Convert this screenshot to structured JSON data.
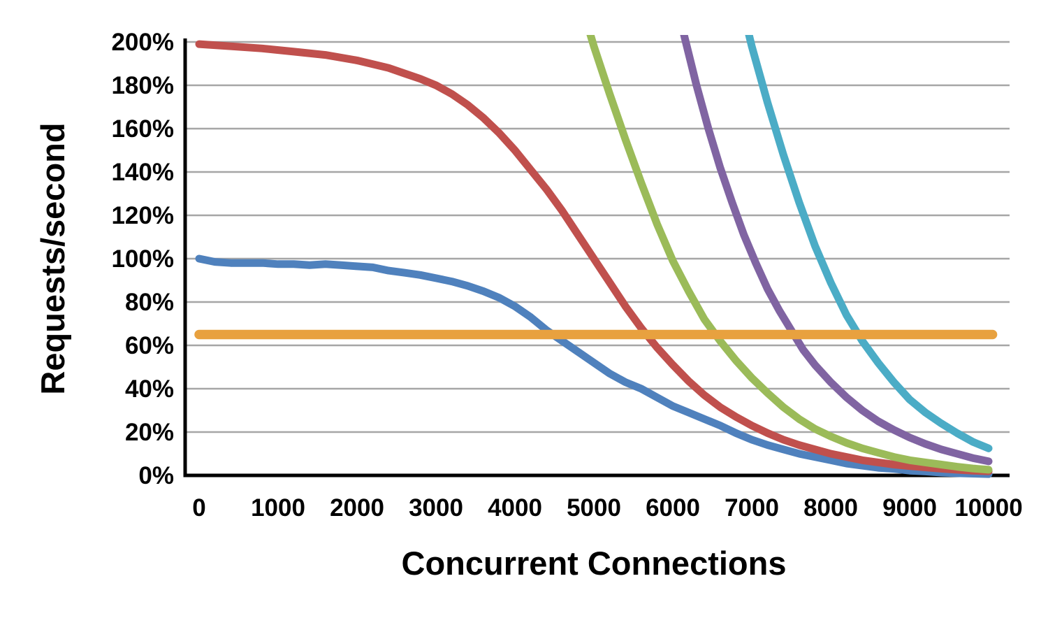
{
  "chart_data": {
    "type": "line",
    "title": "",
    "xlabel": "Concurrent Connections",
    "ylabel": "Requests/second",
    "xlim": [
      0,
      10000
    ],
    "ylim": [
      0,
      200
    ],
    "grid": "horizontal-only",
    "legend": "none",
    "axis_color": "#000000",
    "gridline_color": "#A6A6A6",
    "x_ticks": {
      "values": [
        0,
        1000,
        2000,
        3000,
        4000,
        5000,
        6000,
        7000,
        8000,
        9000,
        10000
      ],
      "labels": [
        "0",
        "1000",
        "2000",
        "3000",
        "4000",
        "5000",
        "6000",
        "7000",
        "8000",
        "9000",
        "10000"
      ]
    },
    "y_ticks": {
      "values": [
        0,
        20,
        40,
        60,
        80,
        100,
        120,
        140,
        160,
        180,
        200
      ],
      "labels": [
        "0%",
        "20%",
        "40%",
        "60%",
        "80%",
        "100%",
        "120%",
        "140%",
        "160%",
        "180%",
        "200%"
      ]
    },
    "series": [
      {
        "name": "blue-100pct-curve",
        "color": "#4F81BD",
        "width": 11,
        "points": [
          [
            0,
            100
          ],
          [
            200,
            98.5
          ],
          [
            400,
            98
          ],
          [
            600,
            98
          ],
          [
            800,
            98
          ],
          [
            1000,
            97.5
          ],
          [
            1200,
            97.5
          ],
          [
            1400,
            97
          ],
          [
            1600,
            97.5
          ],
          [
            1800,
            97
          ],
          [
            2000,
            96.5
          ],
          [
            2200,
            96
          ],
          [
            2400,
            94.5
          ],
          [
            2600,
            93.5
          ],
          [
            2800,
            92.5
          ],
          [
            3000,
            91
          ],
          [
            3200,
            89.5
          ],
          [
            3400,
            87.5
          ],
          [
            3600,
            85
          ],
          [
            3800,
            82
          ],
          [
            4000,
            78
          ],
          [
            4200,
            73
          ],
          [
            4400,
            67
          ],
          [
            4600,
            62
          ],
          [
            4800,
            57
          ],
          [
            5000,
            52
          ],
          [
            5200,
            47
          ],
          [
            5400,
            43
          ],
          [
            5600,
            40
          ],
          [
            5800,
            36
          ],
          [
            6000,
            32
          ],
          [
            6200,
            29
          ],
          [
            6400,
            26
          ],
          [
            6600,
            23
          ],
          [
            6800,
            19.5
          ],
          [
            7000,
            16.5
          ],
          [
            7200,
            14
          ],
          [
            7400,
            12
          ],
          [
            7600,
            10
          ],
          [
            7800,
            8.5
          ],
          [
            8000,
            7
          ],
          [
            8200,
            5.5
          ],
          [
            8400,
            4.5
          ],
          [
            8600,
            3.5
          ],
          [
            8800,
            3
          ],
          [
            9000,
            2.2
          ],
          [
            9200,
            1.8
          ],
          [
            9400,
            1.3
          ],
          [
            9600,
            1
          ],
          [
            9800,
            0.8
          ],
          [
            10000,
            0.6
          ]
        ]
      },
      {
        "name": "red-200pct-curve",
        "color": "#C0504D",
        "width": 11,
        "points": [
          [
            0,
            199
          ],
          [
            400,
            198
          ],
          [
            800,
            197
          ],
          [
            1200,
            195.5
          ],
          [
            1600,
            194
          ],
          [
            2000,
            191.5
          ],
          [
            2400,
            188
          ],
          [
            2600,
            185.5
          ],
          [
            2800,
            183
          ],
          [
            3000,
            180
          ],
          [
            3200,
            176
          ],
          [
            3400,
            171
          ],
          [
            3600,
            165
          ],
          [
            3800,
            158
          ],
          [
            4000,
            150
          ],
          [
            4200,
            141
          ],
          [
            4400,
            132
          ],
          [
            4600,
            122
          ],
          [
            4800,
            111
          ],
          [
            5000,
            100
          ],
          [
            5200,
            89
          ],
          [
            5400,
            78
          ],
          [
            5600,
            68
          ],
          [
            5800,
            59
          ],
          [
            6000,
            51
          ],
          [
            6200,
            43.5
          ],
          [
            6400,
            37
          ],
          [
            6600,
            31.5
          ],
          [
            6800,
            27
          ],
          [
            7000,
            23
          ],
          [
            7200,
            19.5
          ],
          [
            7400,
            16.5
          ],
          [
            7600,
            14
          ],
          [
            7800,
            12
          ],
          [
            8000,
            10
          ],
          [
            8200,
            8.5
          ],
          [
            8400,
            7
          ],
          [
            8600,
            6
          ],
          [
            8800,
            5
          ],
          [
            9000,
            4.3
          ],
          [
            9200,
            3.7
          ],
          [
            9400,
            3.1
          ],
          [
            9600,
            2.6
          ],
          [
            9800,
            2.2
          ],
          [
            10000,
            1.9
          ]
        ]
      },
      {
        "name": "green-curve",
        "color": "#9BBB59",
        "width": 11,
        "points": [
          [
            4820,
            220
          ],
          [
            5000,
            198
          ],
          [
            5200,
            176
          ],
          [
            5400,
            155
          ],
          [
            5600,
            135
          ],
          [
            5800,
            116
          ],
          [
            6000,
            99
          ],
          [
            6200,
            85
          ],
          [
            6400,
            72
          ],
          [
            6600,
            62
          ],
          [
            6800,
            53
          ],
          [
            7000,
            45
          ],
          [
            7200,
            38
          ],
          [
            7400,
            31.5
          ],
          [
            7600,
            26
          ],
          [
            7800,
            21.5
          ],
          [
            8000,
            18
          ],
          [
            8200,
            15
          ],
          [
            8400,
            12.5
          ],
          [
            8600,
            10.5
          ],
          [
            8800,
            8.5
          ],
          [
            9000,
            7
          ],
          [
            9200,
            6
          ],
          [
            9400,
            5
          ],
          [
            9600,
            4
          ],
          [
            9800,
            3.2
          ],
          [
            10000,
            2.6
          ]
        ]
      },
      {
        "name": "purple-curve",
        "color": "#8064A2",
        "width": 11,
        "points": [
          [
            6000,
            225
          ],
          [
            6150,
            202
          ],
          [
            6300,
            180
          ],
          [
            6450,
            160
          ],
          [
            6600,
            142
          ],
          [
            6750,
            126
          ],
          [
            6900,
            111
          ],
          [
            7050,
            98
          ],
          [
            7200,
            86
          ],
          [
            7350,
            76
          ],
          [
            7500,
            67
          ],
          [
            7650,
            58
          ],
          [
            7800,
            51
          ],
          [
            8000,
            43
          ],
          [
            8200,
            36
          ],
          [
            8400,
            30
          ],
          [
            8600,
            25
          ],
          [
            8800,
            21
          ],
          [
            9000,
            17.5
          ],
          [
            9200,
            14.5
          ],
          [
            9400,
            12
          ],
          [
            9600,
            10
          ],
          [
            9800,
            8
          ],
          [
            10000,
            6.5
          ]
        ]
      },
      {
        "name": "teal-curve",
        "color": "#4BACC6",
        "width": 11,
        "points": [
          [
            6820,
            225
          ],
          [
            7000,
            198
          ],
          [
            7200,
            172
          ],
          [
            7400,
            148
          ],
          [
            7600,
            126
          ],
          [
            7800,
            106
          ],
          [
            8000,
            89
          ],
          [
            8200,
            74
          ],
          [
            8400,
            62
          ],
          [
            8600,
            52
          ],
          [
            8800,
            43
          ],
          [
            9000,
            35
          ],
          [
            9200,
            29
          ],
          [
            9400,
            24
          ],
          [
            9600,
            19.5
          ],
          [
            9800,
            15.5
          ],
          [
            10000,
            12.5
          ]
        ]
      },
      {
        "name": "orange-threshold-line",
        "color": "#E8A13F",
        "width": 13.5,
        "points": [
          [
            0,
            65
          ],
          [
            10050,
            65
          ]
        ]
      }
    ]
  }
}
